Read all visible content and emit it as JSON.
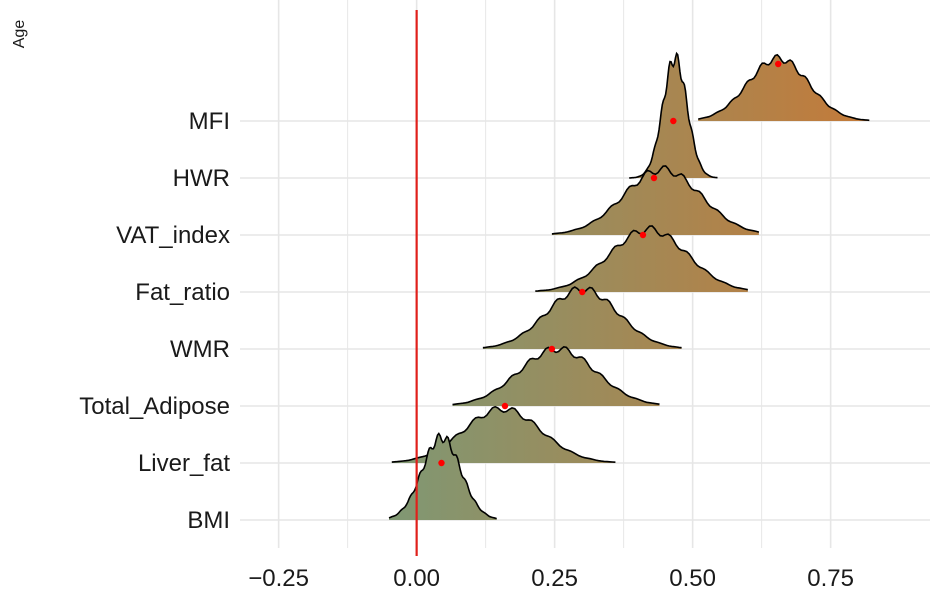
{
  "colors": {
    "grid": "#e6e6e6",
    "zero_line": "#e0201b",
    "outline": "#000000",
    "fill_low": "#7a9a78",
    "fill_high": "#c27b3b",
    "mean_dot": "#ff0000"
  },
  "chart_data": {
    "type": "ridgeline",
    "ylabel": "Age",
    "xlim": [
      -0.32,
      0.93
    ],
    "xticks": [
      -0.25,
      0.0,
      0.25,
      0.5,
      0.75
    ],
    "xtick_labels": [
      "−0.25",
      "0.00",
      "0.25",
      "0.50",
      "0.75"
    ],
    "grid": true,
    "reference_line_x": 0,
    "categories": [
      "BMI",
      "Liver_fat",
      "Total_Adipose",
      "WMR",
      "Fat_ratio",
      "VAT_index",
      "HWR",
      "MFI"
    ],
    "series": [
      {
        "name": "BMI",
        "mean": 0.045,
        "range": [
          -0.05,
          0.145
        ],
        "peak": 0.045,
        "sd": 0.035,
        "height": 1.45
      },
      {
        "name": "Liver_fat",
        "mean": 0.16,
        "range": [
          -0.045,
          0.36
        ],
        "peak": 0.155,
        "sd": 0.07,
        "height": 0.95
      },
      {
        "name": "Total_Adipose",
        "mean": 0.245,
        "range": [
          0.065,
          0.44
        ],
        "peak": 0.255,
        "sd": 0.07,
        "height": 1.0
      },
      {
        "name": "WMR",
        "mean": 0.3,
        "range": [
          0.12,
          0.48
        ],
        "peak": 0.3,
        "sd": 0.065,
        "height": 1.05
      },
      {
        "name": "Fat_ratio",
        "mean": 0.41,
        "range": [
          0.215,
          0.6
        ],
        "peak": 0.42,
        "sd": 0.07,
        "height": 1.1
      },
      {
        "name": "VAT_index",
        "mean": 0.43,
        "range": [
          0.245,
          0.62
        ],
        "peak": 0.445,
        "sd": 0.07,
        "height": 1.15
      },
      {
        "name": "HWR",
        "mean": 0.465,
        "range": [
          0.385,
          0.545
        ],
        "peak": 0.468,
        "sd": 0.022,
        "height": 2.1
      },
      {
        "name": "MFI",
        "mean": 0.655,
        "range": [
          0.51,
          0.82
        ],
        "peak": 0.655,
        "sd": 0.055,
        "height": 1.1
      }
    ]
  }
}
